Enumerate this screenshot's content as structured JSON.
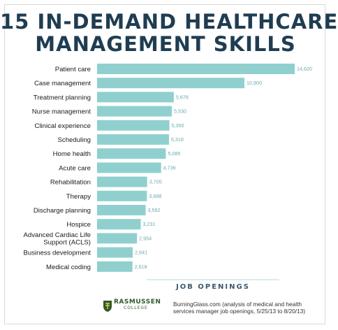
{
  "title_line1": "15 IN-DEMAND HEALTHCARE",
  "title_line2": "MANAGEMENT SKILLS",
  "colors": {
    "bar": "#8fd0cf",
    "title": "#1f3d52",
    "axis": "#3a5a6a"
  },
  "chart_data": {
    "type": "bar",
    "orientation": "horizontal",
    "title": "15 IN-DEMAND HEALTHCARE MANAGEMENT SKILLS",
    "xlabel": "JOB OPENINGS",
    "ylabel": "",
    "xlim": [
      0,
      15000
    ],
    "categories": [
      "Patient care",
      "Case management",
      "Treatment planning",
      "Nurse management",
      "Clinical experience",
      "Scheduling",
      "Home health",
      "Acute care",
      "Rehabilitation",
      "Therapy",
      "Discharge planning",
      "Hospice",
      "Advanced Cardiac Life Support (ACLS)",
      "Business development",
      "Medical coding"
    ],
    "category_lines": [
      [
        "Patient care"
      ],
      [
        "Case management"
      ],
      [
        "Treatment planning"
      ],
      [
        "Nurse management"
      ],
      [
        "Clinical experience"
      ],
      [
        "Scheduling"
      ],
      [
        "Home health"
      ],
      [
        "Acute care"
      ],
      [
        "Rehabilitation"
      ],
      [
        "Therapy"
      ],
      [
        "Discharge planning"
      ],
      [
        "Hospice"
      ],
      [
        "Advanced Cardiac Life",
        "Support (ACLS)"
      ],
      [
        "Business development"
      ],
      [
        "Medical coding"
      ]
    ],
    "values": [
      14620,
      10900,
      5676,
      5530,
      5350,
      5318,
      5085,
      4736,
      3705,
      3688,
      3592,
      3231,
      2954,
      2641,
      2618
    ],
    "value_labels": [
      "14,620",
      "10,900",
      "5,676",
      "5,530",
      "5,350",
      "5,318",
      "5,085",
      "4,736",
      "3,705",
      "3,688",
      "3,592",
      "3,231",
      "2,954",
      "2,641",
      "2,618"
    ],
    "grid": false,
    "legend": "none"
  },
  "footer": {
    "logo_name": "RASMUSSEN",
    "logo_sub": "COLLEGE",
    "logo_icon": "rasmussen-shield-icon",
    "source_text": "BurningGlass.com (analysis of medical and health services manager job openings, 5/25/13 to 8/20/13)"
  }
}
